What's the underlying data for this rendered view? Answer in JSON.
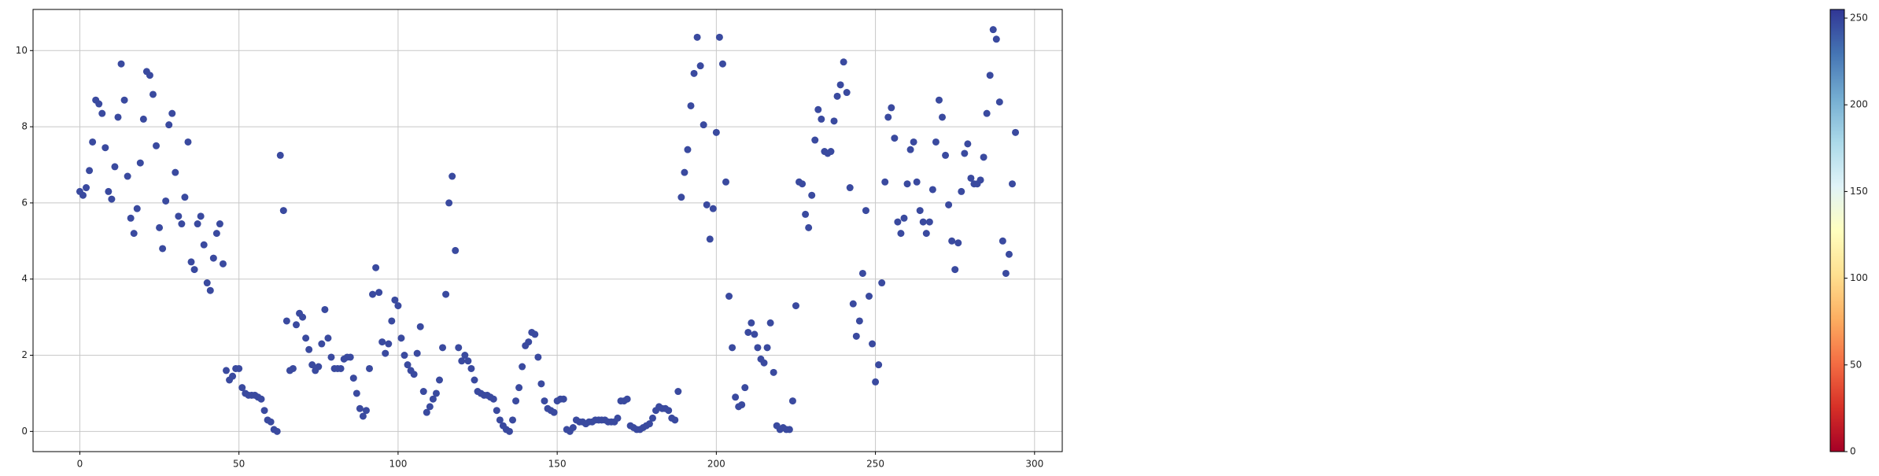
{
  "chart_data": {
    "type": "scatter",
    "x": [
      0,
      1,
      2,
      3,
      4,
      5,
      6,
      7,
      8,
      9,
      10,
      11,
      12,
      13,
      14,
      15,
      16,
      17,
      18,
      19,
      20,
      21,
      22,
      23,
      24,
      25,
      26,
      27,
      28,
      29,
      30,
      31,
      32,
      33,
      34,
      35,
      36,
      37,
      38,
      39,
      40,
      41,
      42,
      43,
      44,
      45,
      46,
      47,
      48,
      49,
      50,
      51,
      52,
      53,
      54,
      55,
      56,
      57,
      58,
      59,
      60,
      61,
      62,
      63,
      64,
      65,
      66,
      67,
      68,
      69,
      70,
      71,
      72,
      73,
      74,
      75,
      76,
      77,
      78,
      79,
      80,
      81,
      82,
      83,
      84,
      85,
      86,
      87,
      88,
      89,
      90,
      91,
      92,
      93,
      94,
      95,
      96,
      97,
      98,
      99,
      100,
      101,
      102,
      103,
      104,
      105,
      106,
      107,
      108,
      109,
      110,
      111,
      112,
      113,
      114,
      115,
      116,
      117,
      118,
      119,
      120,
      121,
      122,
      123,
      124,
      125,
      126,
      127,
      128,
      129,
      130,
      131,
      132,
      133,
      134,
      135,
      136,
      137,
      138,
      139,
      140,
      141,
      142,
      143,
      144,
      145,
      146,
      147,
      148,
      149,
      150,
      151,
      152,
      153,
      154,
      155,
      156,
      157,
      158,
      159,
      160,
      161,
      162,
      163,
      164,
      165,
      166,
      167,
      168,
      169,
      170,
      171,
      172,
      173,
      174,
      175,
      176,
      177,
      178,
      179,
      180,
      181,
      182,
      183,
      184,
      185,
      186,
      187,
      188,
      189,
      190,
      191,
      192,
      193,
      194,
      195,
      196,
      197,
      198,
      199,
      200,
      201,
      202,
      203,
      204,
      205,
      206,
      207,
      208,
      209,
      210,
      211,
      212,
      213,
      214,
      215,
      216,
      217,
      218,
      219,
      220,
      221,
      222,
      223,
      224,
      225,
      226,
      227,
      228,
      229,
      230,
      231,
      232,
      233,
      234,
      235,
      236,
      237,
      238,
      239,
      240,
      241,
      242,
      243,
      244,
      245,
      246,
      247,
      248,
      249,
      250,
      251,
      252,
      253,
      254,
      255,
      256,
      257,
      258,
      259,
      260,
      261,
      262,
      263,
      264,
      265,
      266,
      267,
      268,
      269,
      270,
      271,
      272,
      273,
      274,
      275,
      276,
      277,
      278,
      279,
      280,
      281,
      282,
      283,
      284,
      285,
      286,
      287,
      288,
      289,
      290,
      291,
      292,
      293,
      294
    ],
    "values": [
      6.3,
      6.2,
      6.4,
      6.85,
      7.6,
      8.7,
      8.6,
      8.35,
      7.45,
      6.3,
      6.1,
      6.95,
      8.25,
      9.65,
      8.7,
      6.7,
      5.6,
      5.2,
      5.85,
      7.05,
      8.2,
      9.45,
      9.35,
      8.85,
      7.5,
      5.35,
      4.8,
      6.05,
      8.05,
      8.35,
      6.8,
      5.65,
      5.45,
      6.15,
      7.6,
      4.45,
      4.25,
      5.45,
      5.65,
      4.9,
      3.9,
      3.7,
      4.55,
      5.2,
      5.45,
      4.4,
      1.6,
      1.35,
      1.45,
      1.65,
      1.65,
      1.15,
      1.0,
      0.95,
      0.95,
      0.95,
      0.9,
      0.85,
      0.55,
      0.3,
      0.25,
      0.05,
      0.0,
      7.25,
      5.8,
      2.9,
      1.6,
      1.65,
      2.8,
      3.1,
      3.0,
      2.45,
      2.15,
      1.75,
      1.6,
      1.7,
      2.3,
      3.2,
      2.45,
      1.95,
      1.65,
      1.65,
      1.65,
      1.9,
      1.95,
      1.95,
      1.4,
      1.0,
      0.6,
      0.4,
      0.55,
      1.65,
      3.6,
      4.3,
      3.65,
      2.35,
      2.05,
      2.3,
      2.9,
      3.45,
      3.3,
      2.45,
      2.0,
      1.75,
      1.6,
      1.5,
      2.05,
      2.75,
      1.05,
      0.5,
      0.65,
      0.85,
      1.0,
      1.35,
      2.2,
      3.6,
      6.0,
      6.7,
      4.75,
      2.2,
      1.85,
      2.0,
      1.85,
      1.65,
      1.35,
      1.05,
      1.0,
      0.95,
      0.95,
      0.9,
      0.85,
      0.55,
      0.3,
      0.15,
      0.05,
      0.0,
      0.3,
      0.8,
      1.15,
      1.7,
      2.25,
      2.35,
      2.6,
      2.55,
      1.95,
      1.25,
      0.8,
      0.6,
      0.55,
      0.5,
      0.8,
      0.85,
      0.85,
      0.05,
      0.0,
      0.1,
      0.3,
      0.25,
      0.25,
      0.2,
      0.25,
      0.25,
      0.3,
      0.3,
      0.3,
      0.3,
      0.25,
      0.25,
      0.25,
      0.35,
      0.8,
      0.8,
      0.85,
      0.15,
      0.1,
      0.05,
      0.05,
      0.1,
      0.15,
      0.2,
      0.35,
      0.55,
      0.65,
      0.6,
      0.6,
      0.55,
      0.35,
      0.3,
      1.05,
      6.15,
      6.8,
      7.4,
      8.55,
      9.4,
      10.35,
      9.6,
      8.05,
      5.95,
      5.05,
      5.85,
      7.85,
      10.35,
      9.65,
      6.55,
      3.55,
      2.2,
      0.9,
      0.65,
      0.7,
      1.15,
      2.6,
      2.85,
      2.55,
      2.2,
      1.9,
      1.8,
      2.2,
      2.85,
      1.55,
      0.15,
      0.05,
      0.1,
      0.05,
      0.05,
      0.8,
      3.3,
      6.55,
      6.5,
      5.7,
      5.35,
      6.2,
      7.65,
      8.45,
      8.2,
      7.35,
      7.3,
      7.35,
      8.15,
      8.8,
      9.1,
      9.7,
      8.9,
      6.4,
      3.35,
      2.5,
      2.9,
      4.15,
      5.8,
      3.55,
      2.3,
      1.3,
      1.75,
      3.9,
      6.55,
      8.25,
      8.5,
      7.7,
      5.5,
      5.2,
      5.6,
      6.5,
      7.4,
      7.6,
      6.55,
      5.8,
      5.5,
      5.2,
      5.5,
      6.35,
      7.6,
      8.7,
      8.25,
      7.25,
      5.95,
      5.0,
      4.25,
      4.95,
      6.3,
      7.3,
      7.55,
      6.65,
      6.5,
      6.5,
      6.6,
      7.2,
      8.35,
      9.35,
      10.55,
      10.3,
      8.65,
      5.0,
      4.15,
      4.65,
      6.5,
      7.85
    ],
    "color": "#3a4a9f",
    "xlim": [
      -14.7,
      308.7
    ],
    "xticks": [
      0,
      50,
      100,
      150,
      200,
      250,
      300
    ],
    "ylim": [
      -0.53,
      11.08
    ],
    "yticks": [
      0,
      2,
      4,
      6,
      8,
      10
    ],
    "grid": true,
    "colorbar": {
      "lim": [
        0,
        255
      ],
      "ticks": [
        0,
        50,
        100,
        150,
        200,
        250
      ],
      "colors": [
        "#a50026",
        "#d73027",
        "#f46d43",
        "#fdae61",
        "#fee090",
        "#ffffbf",
        "#e0f3f8",
        "#abd9e9",
        "#74add1",
        "#4575b4",
        "#313695"
      ]
    }
  }
}
